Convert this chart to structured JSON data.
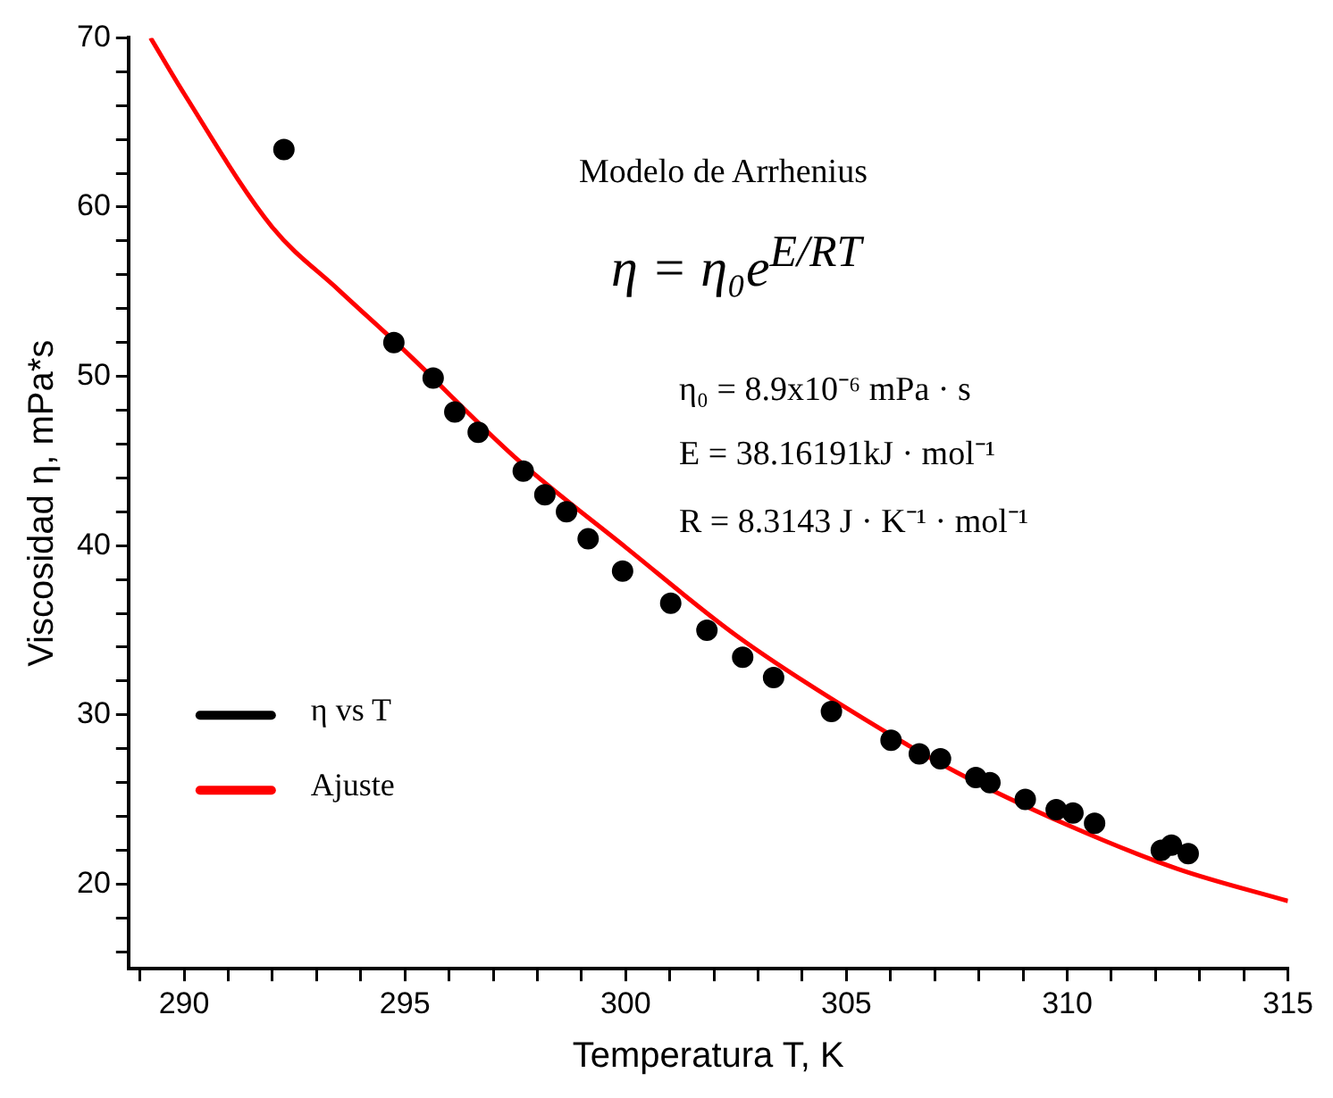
{
  "chart_data": {
    "type": "scatter",
    "xlabel": "Temperatura T, K",
    "ylabel": "Viscosidad η, mPa*s",
    "xlim": [
      288.74,
      315
    ],
    "ylim": [
      15,
      70
    ],
    "xticks": [
      {
        "value": 289,
        "label": null
      },
      290,
      {
        "value": 291,
        "label": null
      },
      {
        "value": 292,
        "label": null
      },
      {
        "value": 293,
        "label": null
      },
      {
        "value": 294,
        "label": null
      },
      295,
      {
        "value": 296,
        "label": null
      },
      {
        "value": 297,
        "label": null
      },
      {
        "value": 298,
        "label": null
      },
      {
        "value": 299,
        "label": null
      },
      300,
      {
        "value": 301,
        "label": null
      },
      {
        "value": 302,
        "label": null
      },
      {
        "value": 303,
        "label": null
      },
      {
        "value": 304,
        "label": null
      },
      305,
      {
        "value": 306,
        "label": null
      },
      {
        "value": 307,
        "label": null
      },
      {
        "value": 308,
        "label": null
      },
      {
        "value": 309,
        "label": null
      },
      310,
      {
        "value": 311,
        "label": null
      },
      {
        "value": 312,
        "label": null
      },
      {
        "value": 313,
        "label": null
      },
      {
        "value": 314,
        "label": null
      },
      315
    ],
    "yticks": [
      {
        "value": 16,
        "label": null
      },
      {
        "value": 18,
        "label": null
      },
      20,
      {
        "value": 22,
        "label": null
      },
      {
        "value": 24,
        "label": null
      },
      {
        "value": 26,
        "label": null
      },
      {
        "value": 28,
        "label": null
      },
      30,
      {
        "value": 32,
        "label": null
      },
      {
        "value": 34,
        "label": null
      },
      {
        "value": 36,
        "label": null
      },
      {
        "value": 38,
        "label": null
      },
      40,
      {
        "value": 42,
        "label": null
      },
      {
        "value": 44,
        "label": null
      },
      {
        "value": 46,
        "label": null
      },
      {
        "value": 48,
        "label": null
      },
      50,
      {
        "value": 52,
        "label": null
      },
      {
        "value": 54,
        "label": null
      },
      {
        "value": 56,
        "label": null
      },
      {
        "value": 58,
        "label": null
      },
      60,
      {
        "value": 62,
        "label": null
      },
      {
        "value": 64,
        "label": null
      },
      {
        "value": 66,
        "label": null
      },
      {
        "value": 68,
        "label": null
      },
      70
    ],
    "grid": false,
    "legend": "bottom left",
    "series": [
      {
        "name": "η vs T",
        "type": "scatter",
        "marker": "circle",
        "color": "#000000",
        "x": [
          292.26,
          294.75,
          295.64,
          296.13,
          296.66,
          297.68,
          298.17,
          298.66,
          299.15,
          299.93,
          301.02,
          301.84,
          302.65,
          303.35,
          304.66,
          306.01,
          306.65,
          307.13,
          307.93,
          308.25,
          309.05,
          309.75,
          310.13,
          310.62,
          312.13,
          312.36,
          312.74
        ],
        "values": [
          63.4,
          52.0,
          49.9,
          47.9,
          46.7,
          44.4,
          43.0,
          42.0,
          40.4,
          38.5,
          36.6,
          35.0,
          33.4,
          32.2,
          30.2,
          28.5,
          27.7,
          27.4,
          26.3,
          26.0,
          25.0,
          24.4,
          24.2,
          23.6,
          22.0,
          22.3,
          21.8
        ]
      },
      {
        "name": "Ajuste",
        "type": "line",
        "line_style": "solid",
        "color": "#ff0000",
        "x": [
          289.24,
          290,
          292,
          293.5,
          295,
          297.5,
          300,
          302.5,
          305,
          307.5,
          310,
          312.5,
          315
        ],
        "values": [
          70,
          66.7,
          58.8,
          55.1,
          51.5,
          45.2,
          39.9,
          34.7,
          30.4,
          26.6,
          23.5,
          20.9,
          19.0
        ]
      }
    ],
    "annotations": [
      "Modelo de Arrhenius",
      "η = η₀e$^{E/RT}$",
      "η₀ = 8.9x10⁻⁶ mPa · s",
      "E = 38.16191kJ · mol⁻¹",
      "R = 8.3143 J · K⁻¹ · mol⁻¹"
    ]
  }
}
